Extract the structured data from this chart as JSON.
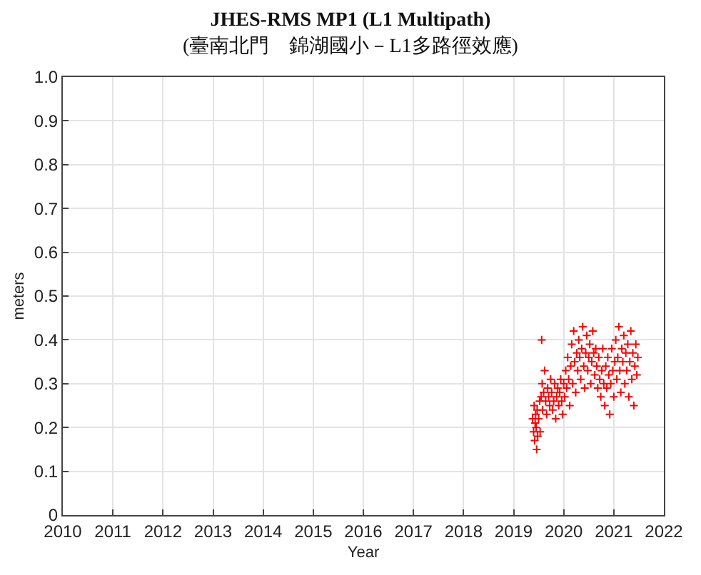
{
  "chart_data": {
    "type": "scatter",
    "title": "JHES-RMS MP1 (L1 Multipath)",
    "subtitle": "(臺南北門　錦湖國小－L1多路徑效應)",
    "xlabel": "Year",
    "ylabel": "meters",
    "xlim": [
      2010,
      2022
    ],
    "xticks": [
      2010,
      2011,
      2012,
      2013,
      2014,
      2015,
      2016,
      2017,
      2018,
      2019,
      2020,
      2021,
      2022
    ],
    "ylim": [
      0,
      1
    ],
    "yticks": [
      0,
      0.1,
      0.2,
      0.3,
      0.4,
      0.5,
      0.6,
      0.7,
      0.8,
      0.9,
      {
        "value": 1,
        "label": "1.0"
      }
    ],
    "grid": true,
    "marker": "cross",
    "series": [
      {
        "color": "#ff0000",
        "x": [
          2019.38,
          2019.4,
          2019.41,
          2019.42,
          2019.43,
          2019.44,
          2019.45,
          2019.46,
          2019.47,
          2019.48,
          2019.5,
          2019.52,
          2019.53,
          2019.55,
          2019.56,
          2019.57,
          2019.58,
          2019.6,
          2019.62,
          2019.64,
          2019.66,
          2019.68,
          2019.7,
          2019.72,
          2019.74,
          2019.76,
          2019.78,
          2019.8,
          2019.82,
          2019.84,
          2019.86,
          2019.88,
          2019.9,
          2019.92,
          2019.94,
          2019.96,
          2019.98,
          2020.0,
          2020.02,
          2020.04,
          2020.06,
          2020.08,
          2020.1,
          2020.12,
          2020.14,
          2020.16,
          2020.18,
          2020.2,
          2020.22,
          2020.24,
          2020.26,
          2020.28,
          2020.3,
          2020.32,
          2020.34,
          2020.36,
          2020.38,
          2020.4,
          2020.42,
          2020.44,
          2020.46,
          2020.48,
          2020.5,
          2020.52,
          2020.54,
          2020.56,
          2020.58,
          2020.6,
          2020.62,
          2020.64,
          2020.66,
          2020.68,
          2020.7,
          2020.72,
          2020.74,
          2020.76,
          2020.78,
          2020.8,
          2020.82,
          2020.84,
          2020.86,
          2020.88,
          2020.9,
          2020.92,
          2020.94,
          2020.96,
          2020.98,
          2021.0,
          2021.02,
          2021.04,
          2021.06,
          2021.08,
          2021.1,
          2021.12,
          2021.14,
          2021.16,
          2021.18,
          2021.2,
          2021.22,
          2021.24,
          2021.26,
          2021.28,
          2021.3,
          2021.32,
          2021.34,
          2021.36,
          2021.38,
          2021.4,
          2021.42,
          2021.44,
          2021.46,
          2021.48
        ],
        "values": [
          0.22,
          0.19,
          0.25,
          0.17,
          0.21,
          0.23,
          0.2,
          0.15,
          0.24,
          0.18,
          0.22,
          0.26,
          0.19,
          0.27,
          0.4,
          0.3,
          0.24,
          0.28,
          0.33,
          0.26,
          0.23,
          0.29,
          0.27,
          0.25,
          0.31,
          0.28,
          0.24,
          0.26,
          0.3,
          0.22,
          0.27,
          0.29,
          0.25,
          0.28,
          0.31,
          0.26,
          0.23,
          0.3,
          0.27,
          0.33,
          0.29,
          0.36,
          0.31,
          0.25,
          0.34,
          0.39,
          0.3,
          0.42,
          0.35,
          0.28,
          0.37,
          0.33,
          0.4,
          0.36,
          0.31,
          0.38,
          0.43,
          0.34,
          0.29,
          0.37,
          0.41,
          0.33,
          0.36,
          0.39,
          0.3,
          0.35,
          0.42,
          0.37,
          0.32,
          0.38,
          0.34,
          0.29,
          0.36,
          0.31,
          0.27,
          0.33,
          0.38,
          0.3,
          0.25,
          0.34,
          0.29,
          0.36,
          0.32,
          0.23,
          0.3,
          0.38,
          0.33,
          0.27,
          0.35,
          0.4,
          0.31,
          0.36,
          0.43,
          0.33,
          0.28,
          0.38,
          0.35,
          0.41,
          0.3,
          0.37,
          0.33,
          0.39,
          0.27,
          0.35,
          0.42,
          0.31,
          0.37,
          0.25,
          0.34,
          0.39,
          0.32,
          0.36
        ]
      }
    ]
  }
}
